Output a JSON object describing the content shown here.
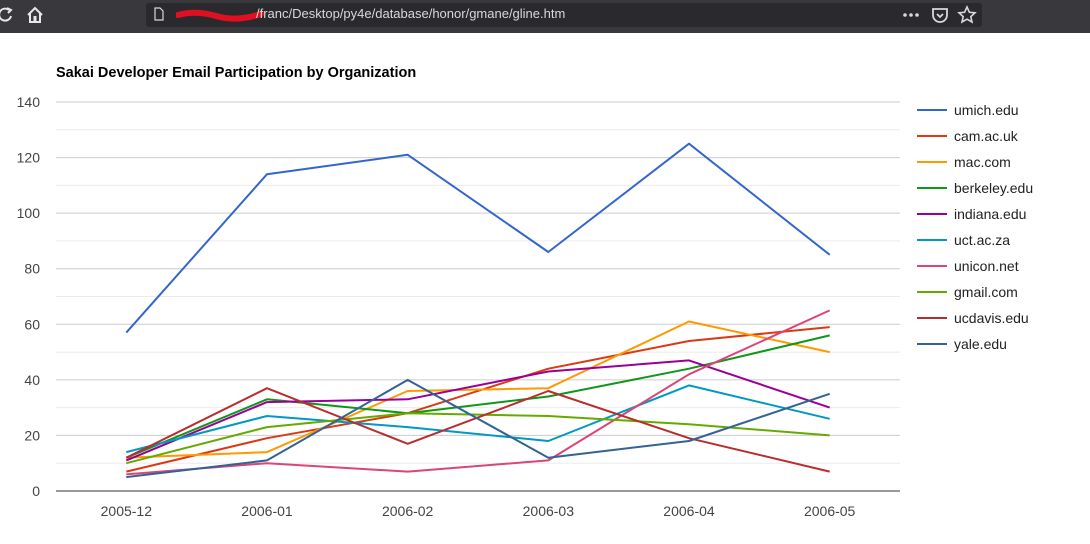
{
  "browser": {
    "url": "file:///C:/Users/franc/Desktop/py4e/database/honor/gmane/gline.htm",
    "url_visible": "/franc/Desktop/py4e/database/honor/gmane/gline.htm"
  },
  "chart_data": {
    "type": "line",
    "title": "Sakai Developer Email Participation by Organization",
    "xlabel": "",
    "ylabel": "",
    "categories": [
      "2005-12",
      "2006-01",
      "2006-02",
      "2006-03",
      "2006-04",
      "2006-05"
    ],
    "ylim": [
      0,
      140
    ],
    "yticks": [
      0,
      20,
      40,
      60,
      80,
      100,
      120,
      140
    ],
    "grid": true,
    "legend_position": "right",
    "series": [
      {
        "name": "umich.edu",
        "color": "#3366cc",
        "values": [
          57,
          114,
          121,
          86,
          125,
          85
        ]
      },
      {
        "name": "cam.ac.uk",
        "color": "#dc3912",
        "values": [
          7,
          19,
          28,
          44,
          54,
          59
        ]
      },
      {
        "name": "mac.com",
        "color": "#ff9900",
        "values": [
          12,
          14,
          36,
          37,
          61,
          50
        ]
      },
      {
        "name": "berkeley.edu",
        "color": "#109618",
        "values": [
          12,
          33,
          28,
          34,
          44,
          56
        ]
      },
      {
        "name": "indiana.edu",
        "color": "#990099",
        "values": [
          11,
          32,
          33,
          43,
          47,
          30
        ]
      },
      {
        "name": "uct.ac.za",
        "color": "#0099c6",
        "values": [
          14,
          27,
          23,
          18,
          38,
          26
        ]
      },
      {
        "name": "unicon.net",
        "color": "#dd4477",
        "values": [
          6,
          10,
          7,
          11,
          42,
          65
        ]
      },
      {
        "name": "gmail.com",
        "color": "#66aa00",
        "values": [
          10,
          23,
          28,
          27,
          24,
          20
        ]
      },
      {
        "name": "ucdavis.edu",
        "color": "#b82e2e",
        "values": [
          12,
          37,
          17,
          36,
          19,
          7
        ]
      },
      {
        "name": "yale.edu",
        "color": "#316395",
        "values": [
          5,
          11,
          40,
          12,
          18,
          35
        ]
      }
    ]
  }
}
